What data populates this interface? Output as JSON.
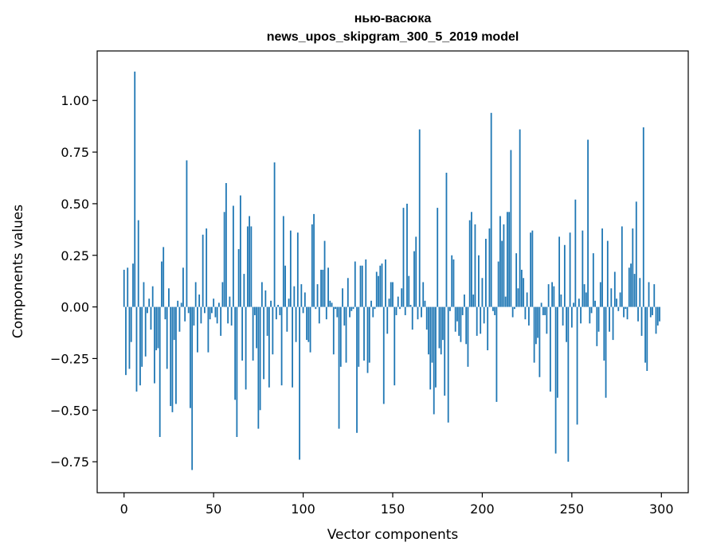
{
  "chart_data": {
    "type": "bar",
    "title": "нью-васюка",
    "subtitle": "news_upos_skipgram_300_5_2019 model",
    "xlabel": "Vector components",
    "ylabel": "Components values",
    "xlim": [
      -15,
      315
    ],
    "ylim": [
      -0.9,
      1.24
    ],
    "xticks": [
      0,
      50,
      100,
      150,
      200,
      250,
      300
    ],
    "xtick_labels": [
      "0",
      "50",
      "100",
      "150",
      "200",
      "250",
      "300"
    ],
    "yticks": [
      -0.75,
      -0.5,
      -0.25,
      0.0,
      0.25,
      0.5,
      0.75,
      1.0
    ],
    "ytick_labels": [
      "−0.75",
      "−0.50",
      "−0.25",
      "0.00",
      "0.25",
      "0.50",
      "0.75",
      "1.00"
    ],
    "grid": false,
    "color": "#1f77b4",
    "x_start": 0,
    "values": [
      0.18,
      -0.33,
      0.19,
      -0.3,
      -0.17,
      0.21,
      1.14,
      -0.41,
      0.42,
      -0.38,
      -0.29,
      0.12,
      -0.24,
      -0.03,
      0.04,
      -0.11,
      0.1,
      -0.37,
      -0.21,
      -0.2,
      -0.63,
      0.22,
      0.29,
      -0.06,
      -0.3,
      0.09,
      -0.48,
      -0.51,
      -0.16,
      -0.47,
      0.03,
      -0.12,
      0.02,
      0.19,
      -0.07,
      0.71,
      -0.03,
      -0.49,
      -0.79,
      -0.09,
      0.12,
      -0.22,
      0.06,
      -0.08,
      0.35,
      -0.03,
      0.38,
      -0.22,
      -0.06,
      -0.03,
      0.04,
      -0.05,
      -0.08,
      0.02,
      -0.14,
      0.12,
      0.46,
      0.6,
      -0.08,
      0.05,
      -0.09,
      0.49,
      -0.45,
      -0.63,
      0.28,
      0.54,
      -0.26,
      0.16,
      -0.4,
      0.39,
      0.44,
      0.39,
      -0.26,
      -0.04,
      -0.2,
      -0.59,
      -0.5,
      0.12,
      -0.35,
      0.08,
      -0.14,
      -0.39,
      0.03,
      -0.23,
      0.7,
      -0.06,
      0.01,
      -0.04,
      -0.38,
      0.44,
      0.2,
      -0.12,
      0.04,
      0.37,
      -0.39,
      0.1,
      -0.17,
      0.36,
      -0.74,
      0.11,
      -0.03,
      0.07,
      -0.16,
      -0.17,
      -0.22,
      0.4,
      0.45,
      -0.01,
      0.11,
      -0.08,
      0.18,
      0.18,
      0.32,
      -0.06,
      0.19,
      0.03,
      0.02,
      -0.23,
      -0.01,
      -0.05,
      -0.59,
      -0.29,
      0.09,
      -0.09,
      -0.27,
      0.14,
      -0.05,
      -0.02,
      -0.01,
      0.22,
      -0.61,
      -0.29,
      0.2,
      0.2,
      -0.26,
      0.23,
      -0.32,
      -0.27,
      0.03,
      -0.05,
      -0.01,
      0.17,
      0.15,
      0.2,
      0.21,
      -0.47,
      0.23,
      -0.13,
      0.04,
      0.12,
      0.12,
      -0.38,
      -0.04,
      0.05,
      -0.01,
      0.09,
      0.48,
      -0.04,
      0.5,
      0.15,
      0.01,
      -0.11,
      0.27,
      0.34,
      -0.06,
      0.86,
      -0.05,
      0.12,
      0.03,
      -0.11,
      -0.23,
      -0.4,
      -0.27,
      -0.52,
      -0.39,
      0.48,
      -0.2,
      -0.23,
      -0.16,
      -0.43,
      0.65,
      -0.56,
      -0.02,
      0.25,
      0.23,
      -0.12,
      -0.07,
      -0.14,
      -0.17,
      -0.04,
      0.06,
      -0.18,
      -0.29,
      0.42,
      0.46,
      0.06,
      0.4,
      -0.14,
      0.25,
      -0.13,
      0.14,
      -0.08,
      0.33,
      -0.21,
      0.38,
      0.94,
      -0.02,
      -0.04,
      -0.46,
      0.22,
      0.44,
      0.32,
      0.4,
      0.05,
      0.46,
      0.46,
      0.76,
      -0.05,
      -0.01,
      0.26,
      0.09,
      0.86,
      0.18,
      0.14,
      -0.06,
      0.07,
      -0.09,
      0.36,
      0.37,
      -0.27,
      -0.18,
      -0.15,
      -0.34,
      0.02,
      -0.04,
      -0.04,
      -0.13,
      0.11,
      -0.41,
      0.12,
      0.1,
      -0.71,
      -0.44,
      0.34,
      0.06,
      -0.09,
      0.3,
      -0.17,
      -0.75,
      0.36,
      -0.1,
      0.02,
      0.52,
      -0.57,
      0.04,
      -0.08,
      0.37,
      0.11,
      0.07,
      0.81,
      -0.08,
      -0.03,
      0.26,
      0.03,
      -0.19,
      -0.12,
      0.12,
      0.38,
      -0.26,
      -0.44,
      0.32,
      -0.12,
      0.09,
      -0.16,
      0.17,
      0.04,
      -0.02,
      0.07,
      0.39,
      -0.05,
      -0.01,
      -0.06,
      0.19,
      0.21,
      0.38,
      0.16,
      0.51,
      -0.07,
      0.14,
      -0.14,
      0.87,
      -0.27,
      -0.31,
      0.12,
      -0.05,
      -0.04,
      0.11,
      -0.13,
      -0.09,
      -0.07
    ]
  }
}
